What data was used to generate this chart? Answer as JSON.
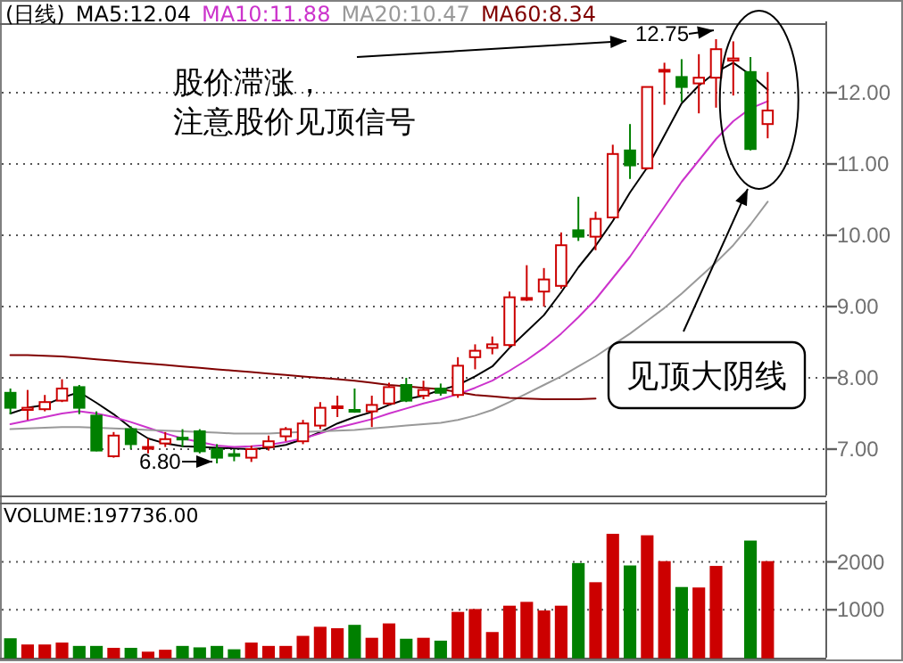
{
  "chart_data": [
    {
      "type": "candlestick",
      "title": "(日线)",
      "categories": [
        null,
        null,
        null,
        null,
        null,
        null,
        null,
        null,
        null,
        null,
        null,
        null,
        null,
        null,
        null,
        null,
        null,
        null,
        null,
        null,
        null,
        null,
        null,
        null,
        null,
        null,
        null,
        null,
        null,
        null,
        null,
        null,
        null,
        null,
        null,
        null,
        null,
        null,
        null,
        null,
        null,
        null,
        null,
        null,
        null
      ],
      "ohlc": [
        [
          7.79,
          7.85,
          7.49,
          7.58
        ],
        [
          7.55,
          7.83,
          7.41,
          7.58
        ],
        [
          7.56,
          7.76,
          7.53,
          7.66
        ],
        [
          7.68,
          7.98,
          7.66,
          7.85
        ],
        [
          7.87,
          7.9,
          7.49,
          7.58
        ],
        [
          7.47,
          7.53,
          6.97,
          6.98
        ],
        [
          6.9,
          7.24,
          6.88,
          7.19
        ],
        [
          7.28,
          7.32,
          7.0,
          7.07
        ],
        [
          7.01,
          7.15,
          6.94,
          7.03
        ],
        [
          7.08,
          7.24,
          7.03,
          7.14
        ],
        [
          7.16,
          7.28,
          7.03,
          7.14
        ],
        [
          7.25,
          7.28,
          6.94,
          6.97
        ],
        [
          7.0,
          7.07,
          6.8,
          6.88
        ],
        [
          6.93,
          7.0,
          6.83,
          6.91
        ],
        [
          6.88,
          7.05,
          6.82,
          7.0
        ],
        [
          7.03,
          7.19,
          6.98,
          7.11
        ],
        [
          7.18,
          7.31,
          7.11,
          7.28
        ],
        [
          7.11,
          7.41,
          7.07,
          7.36
        ],
        [
          7.33,
          7.66,
          7.28,
          7.58
        ],
        [
          7.58,
          7.75,
          7.45,
          7.6
        ],
        [
          7.55,
          7.85,
          7.51,
          7.53
        ],
        [
          7.53,
          7.75,
          7.31,
          7.62
        ],
        [
          7.64,
          7.93,
          7.62,
          7.87
        ],
        [
          7.9,
          8.0,
          7.66,
          7.68
        ],
        [
          7.75,
          7.96,
          7.7,
          7.83
        ],
        [
          7.85,
          7.92,
          7.75,
          7.79
        ],
        [
          7.76,
          8.29,
          7.72,
          8.17
        ],
        [
          8.29,
          8.47,
          8.12,
          8.38
        ],
        [
          8.42,
          8.58,
          8.33,
          8.47
        ],
        [
          8.46,
          9.21,
          8.42,
          9.13
        ],
        [
          9.1,
          9.58,
          9.08,
          9.12
        ],
        [
          9.21,
          9.54,
          9.0,
          9.38
        ],
        [
          9.29,
          10.04,
          9.25,
          9.86
        ],
        [
          10.07,
          10.54,
          9.92,
          9.98
        ],
        [
          9.98,
          10.33,
          9.79,
          10.23
        ],
        [
          10.25,
          11.27,
          10.24,
          11.14
        ],
        [
          11.19,
          11.56,
          10.79,
          10.98
        ],
        [
          10.94,
          12.08,
          10.92,
          12.08
        ],
        [
          12.3,
          12.42,
          11.83,
          12.32
        ],
        [
          12.22,
          12.47,
          11.87,
          12.08
        ],
        [
          12.13,
          12.54,
          11.71,
          12.21
        ],
        [
          12.21,
          12.75,
          11.79,
          12.61
        ],
        [
          12.45,
          12.72,
          11.96,
          12.48
        ],
        [
          12.29,
          12.5,
          11.19,
          11.21
        ],
        [
          11.56,
          12.29,
          11.36,
          11.75
        ]
      ],
      "colors": [
        "#008000",
        "#cc0000",
        "#cc0000",
        "#cc0000",
        "#008000",
        "#008000",
        "#cc0000",
        "#008000",
        "#cc0000",
        "#cc0000",
        "#008000",
        "#008000",
        "#008000",
        "#008000",
        "#cc0000",
        "#cc0000",
        "#cc0000",
        "#cc0000",
        "#cc0000",
        "#cc0000",
        "#008000",
        "#cc0000",
        "#cc0000",
        "#008000",
        "#cc0000",
        "#008000",
        "#cc0000",
        "#cc0000",
        "#cc0000",
        "#cc0000",
        "#cc0000",
        "#cc0000",
        "#cc0000",
        "#008000",
        "#cc0000",
        "#cc0000",
        "#008000",
        "#cc0000",
        "#cc0000",
        "#008000",
        "#cc0000",
        "#cc0000",
        "#cc0000",
        "#008000",
        "#cc0000"
      ],
      "series": [
        {
          "name": "MA5:12.04",
          "type": "line",
          "color": "#000000",
          "values": [
            7.5,
            7.58,
            7.62,
            7.72,
            7.8,
            7.65,
            7.49,
            7.3,
            7.15,
            7.08,
            7.04,
            7.03,
            7.02,
            7.01,
            7.0,
            7.02,
            7.06,
            7.14,
            7.24,
            7.36,
            7.45,
            7.52,
            7.62,
            7.7,
            7.75,
            7.83,
            7.9,
            8.02,
            8.16,
            8.42,
            8.65,
            8.88,
            9.2,
            9.55,
            9.85,
            10.2,
            10.6,
            10.95,
            11.4,
            11.85,
            12.1,
            12.29,
            12.42,
            12.25,
            12.04
          ]
        },
        {
          "name": "MA10:11.88",
          "type": "line",
          "color": "#cc33cc",
          "values": [
            7.35,
            7.4,
            7.45,
            7.5,
            7.53,
            7.5,
            7.45,
            7.38,
            7.3,
            7.22,
            7.15,
            7.1,
            7.05,
            7.03,
            7.04,
            7.06,
            7.1,
            7.15,
            7.22,
            7.3,
            7.36,
            7.42,
            7.5,
            7.57,
            7.64,
            7.7,
            7.77,
            7.86,
            7.96,
            8.1,
            8.25,
            8.42,
            8.62,
            8.85,
            9.1,
            9.4,
            9.7,
            10.05,
            10.4,
            10.75,
            11.05,
            11.35,
            11.6,
            11.78,
            11.88
          ]
        },
        {
          "name": "MA20:10.47",
          "type": "line",
          "color": "#999999",
          "values": [
            7.28,
            7.29,
            7.3,
            7.31,
            7.31,
            7.3,
            7.29,
            7.28,
            7.27,
            7.26,
            7.25,
            7.24,
            7.23,
            7.22,
            7.22,
            7.22,
            7.23,
            7.24,
            7.25,
            7.26,
            7.27,
            7.29,
            7.31,
            7.33,
            7.35,
            7.37,
            7.41,
            7.47,
            7.55,
            7.66,
            7.78,
            7.9,
            8.02,
            8.16,
            8.3,
            8.46,
            8.62,
            8.8,
            8.98,
            9.18,
            9.4,
            9.62,
            9.86,
            10.15,
            10.47
          ]
        },
        {
          "name": "MA60:8.34",
          "type": "line",
          "color": "#800000",
          "values": [
            8.32,
            8.32,
            8.31,
            8.3,
            8.28,
            8.26,
            8.24,
            8.22,
            8.2,
            8.18,
            8.16,
            8.14,
            8.12,
            8.1,
            8.08,
            8.06,
            8.04,
            8.02,
            8.0,
            7.98,
            7.96,
            7.93,
            7.9,
            7.88,
            7.86,
            7.84,
            7.8,
            7.76,
            7.74,
            7.72,
            7.71,
            7.7,
            7.7,
            7.7,
            7.71,
            null,
            null,
            null,
            null,
            null,
            null,
            null,
            null,
            null,
            null
          ]
        }
      ],
      "ylim": [
        6.35,
        12.95
      ],
      "yticks": [
        {
          "value": 7,
          "label": "7.00"
        },
        {
          "value": 8,
          "label": "8.00"
        },
        {
          "value": 9,
          "label": "9.00"
        },
        {
          "value": 10,
          "label": "10.00"
        },
        {
          "value": 11,
          "label": "11.00"
        },
        {
          "value": 12,
          "label": "12.00"
        }
      ],
      "grid": "y",
      "annotations": [
        "12.75",
        "6.80",
        "股价滞涨，注意股价见顶信号",
        "见顶大阴线"
      ]
    },
    {
      "type": "bar",
      "title": "VOLUME:197736.00",
      "categories": [
        null,
        null,
        null,
        null,
        null,
        null,
        null,
        null,
        null,
        null,
        null,
        null,
        null,
        null,
        null,
        null,
        null,
        null,
        null,
        null,
        null,
        null,
        null,
        null,
        null,
        null,
        null,
        null,
        null,
        null,
        null,
        null,
        null,
        null,
        null,
        null,
        null,
        null,
        null,
        null,
        null,
        null,
        null,
        null,
        null
      ],
      "values": [
        390,
        260,
        260,
        300,
        230,
        230,
        190,
        190,
        110,
        150,
        230,
        200,
        230,
        160,
        300,
        230,
        230,
        440,
        630,
        600,
        670,
        400,
        700,
        380,
        400,
        340,
        940,
        1000,
        520,
        1070,
        1150,
        970,
        1070,
        1960,
        1560,
        2570,
        1910,
        2540,
        2000,
        1460,
        1450,
        1900,
        null,
        2430,
        2000
      ],
      "colors": [
        "#008000",
        "#cc0000",
        "#cc0000",
        "#cc0000",
        "#008000",
        "#008000",
        "#cc0000",
        "#008000",
        "#cc0000",
        "#cc0000",
        "#008000",
        "#008000",
        "#008000",
        "#008000",
        "#cc0000",
        "#cc0000",
        "#cc0000",
        "#cc0000",
        "#cc0000",
        "#cc0000",
        "#008000",
        "#cc0000",
        "#cc0000",
        "#008000",
        "#cc0000",
        "#008000",
        "#cc0000",
        "#cc0000",
        "#cc0000",
        "#cc0000",
        "#cc0000",
        "#cc0000",
        "#cc0000",
        "#008000",
        "#cc0000",
        "#cc0000",
        "#008000",
        "#cc0000",
        "#cc0000",
        "#008000",
        "#cc0000",
        "#cc0000",
        null,
        "#008000",
        "#cc0000"
      ],
      "ylim": [
        0,
        3200
      ],
      "yticks": [
        1000,
        2000
      ],
      "grid": "y"
    }
  ]
}
